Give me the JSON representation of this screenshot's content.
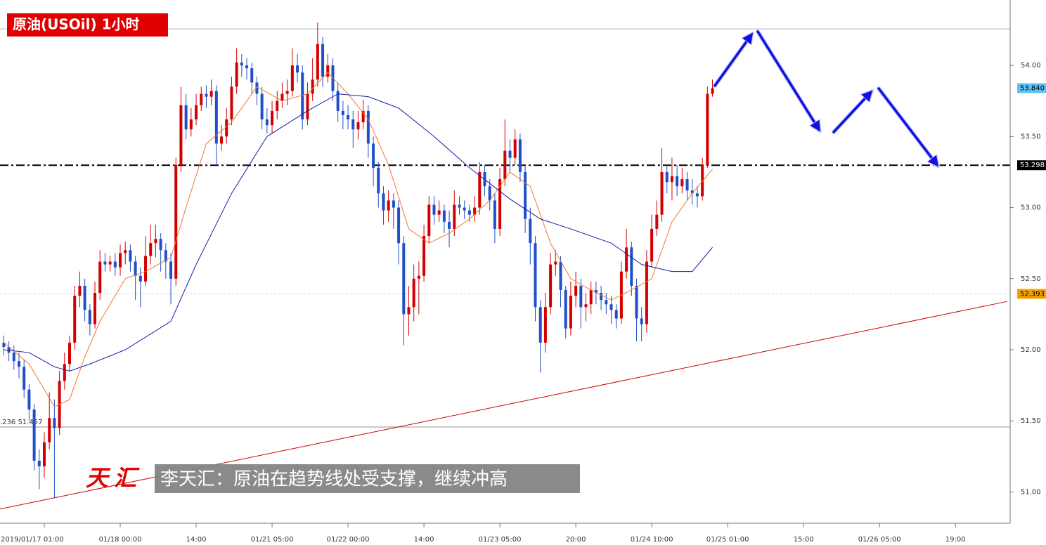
{
  "chart_data": {
    "type": "candlestick",
    "title": "原油(USOil) 1小时",
    "annotation": "李天汇：原油在趋势线处受支撑，继续冲高",
    "watermark": "天汇",
    "up_color": "#d40000",
    "down_color": "#1f50c8",
    "xlim": [
      -0.75,
      198.25
    ],
    "ylim": [
      50.78,
      54.46
    ],
    "yticks": [
      {
        "value": 51,
        "label": "51.00"
      },
      {
        "value": 51.5,
        "label": "51.50"
      },
      {
        "value": 52,
        "label": "52.00"
      },
      {
        "value": 52.5,
        "label": "52.50"
      },
      {
        "value": 53,
        "label": "53.00"
      },
      {
        "value": 53.5,
        "label": "53.50"
      },
      {
        "value": 54,
        "label": "54.00"
      }
    ],
    "xticks": [
      {
        "value": 8,
        "label": "2019/01/17 01:00"
      },
      {
        "value": 23,
        "label": "01/18 00:00"
      },
      {
        "value": 38,
        "label": "14:00"
      },
      {
        "value": 53,
        "label": "01/21 05:00"
      },
      {
        "value": 68,
        "label": "01/22 00:00"
      },
      {
        "value": 83,
        "label": "14:00"
      },
      {
        "value": 98,
        "label": "01/23 05:00"
      },
      {
        "value": 113,
        "label": "20:00"
      },
      {
        "value": 128,
        "label": "01/24 10:00"
      },
      {
        "value": 143,
        "label": "01/25 01:00"
      },
      {
        "value": 158,
        "label": "15:00"
      },
      {
        "value": 173,
        "label": "01/26 05:00"
      },
      {
        "value": 188,
        "label": "19:00"
      }
    ],
    "open": [
      52.05,
      52.02,
      51.98,
      51.92,
      51.88,
      51.72,
      51.58,
      51.22,
      51.18,
      51.35,
      51.52,
      51.45,
      51.78,
      51.9,
      52.05,
      52.38,
      52.45,
      52.28,
      52.18,
      52.4,
      52.62,
      52.6,
      52.62,
      52.58,
      52.68,
      52.7,
      52.62,
      52.52,
      52.48,
      52.66,
      52.75,
      52.78,
      52.7,
      52.62,
      52.5,
      53.3,
      53.72,
      53.55,
      53.62,
      53.72,
      53.8,
      53.78,
      53.82,
      53.45,
      53.5,
      53.62,
      53.85,
      54.02,
      54.0,
      53.98,
      53.88,
      53.8,
      53.62,
      53.58,
      53.68,
      53.75,
      53.8,
      53.82,
      54.0,
      53.95,
      53.62,
      53.8,
      53.9,
      54.15,
      53.92,
      54.0,
      53.82,
      53.68,
      53.65,
      53.62,
      53.55,
      53.6,
      53.68,
      53.45,
      53.28,
      53.1,
      52.98,
      53.05,
      53.0,
      52.75,
      52.25,
      52.3,
      52.5,
      52.52,
      52.8,
      53.02,
      52.95,
      52.98,
      52.9,
      52.85,
      53.02,
      53.0,
      52.98,
      52.95,
      53.0,
      53.25,
      53.15,
      53.05,
      52.85,
      53.2,
      53.4,
      53.35,
      53.48,
      53.25,
      52.92,
      52.75,
      52.3,
      52.05,
      52.3,
      52.6,
      52.62,
      52.42,
      52.15,
      52.38,
      52.45,
      52.3,
      52.32,
      52.42,
      52.4,
      52.35,
      52.32,
      52.28,
      52.22,
      52.55,
      52.72,
      52.45,
      52.22,
      52.18,
      52.62,
      52.85,
      52.95,
      53.25,
      53.18,
      53.22,
      53.15,
      53.2,
      53.12,
      53.1,
      53.08,
      53.3,
      53.8
    ],
    "high": [
      52.1,
      52.06,
      52.03,
      51.98,
      51.93,
      51.76,
      51.62,
      51.3,
      51.42,
      51.7,
      51.65,
      51.85,
      51.98,
      52.1,
      52.45,
      52.55,
      52.5,
      52.32,
      52.48,
      52.7,
      52.68,
      52.66,
      52.68,
      52.74,
      52.76,
      52.74,
      52.66,
      52.58,
      52.8,
      52.88,
      52.88,
      52.82,
      52.75,
      52.68,
      53.35,
      53.85,
      53.8,
      53.7,
      53.8,
      53.85,
      53.86,
      53.9,
      53.86,
      53.58,
      53.7,
      53.92,
      54.12,
      54.08,
      54.05,
      54.02,
      53.92,
      53.85,
      53.7,
      53.75,
      53.82,
      53.88,
      53.9,
      54.12,
      54.08,
      54.0,
      53.88,
      54.05,
      54.3,
      54.2,
      54.08,
      54.05,
      53.88,
      53.75,
      53.72,
      53.68,
      53.68,
      53.76,
      53.72,
      53.5,
      53.32,
      53.15,
      53.12,
      53.1,
      53.05,
      52.8,
      52.45,
      52.6,
      52.62,
      52.88,
      53.08,
      53.08,
      53.05,
      53.02,
      52.98,
      53.12,
      53.08,
      53.05,
      53.02,
      53.08,
      53.32,
      53.3,
      53.2,
      53.1,
      53.28,
      53.62,
      53.48,
      53.55,
      53.52,
      53.3,
      53.0,
      52.8,
      52.35,
      52.4,
      52.68,
      52.7,
      52.66,
      52.45,
      52.48,
      52.55,
      52.5,
      52.4,
      52.48,
      52.48,
      52.45,
      52.4,
      52.38,
      52.32,
      52.62,
      52.85,
      52.76,
      52.5,
      52.3,
      52.7,
      52.95,
      53.05,
      53.42,
      53.3,
      53.35,
      53.3,
      53.28,
      53.25,
      53.2,
      53.15,
      53.35,
      53.85,
      53.9
    ],
    "low": [
      51.96,
      51.92,
      51.86,
      51.8,
      51.66,
      51.5,
      51.15,
      51.02,
      51.1,
      51.3,
      50.96,
      51.4,
      51.72,
      51.85,
      52.0,
      52.3,
      52.2,
      52.1,
      52.15,
      52.35,
      52.55,
      52.55,
      52.52,
      52.52,
      52.6,
      52.55,
      52.35,
      52.3,
      52.45,
      52.6,
      52.65,
      52.55,
      52.5,
      52.32,
      52.45,
      53.25,
      53.48,
      53.5,
      53.58,
      53.68,
      53.7,
      53.72,
      53.3,
      53.4,
      53.45,
      53.58,
      53.8,
      53.92,
      53.9,
      53.8,
      53.72,
      53.55,
      53.52,
      53.52,
      53.62,
      53.7,
      53.72,
      53.78,
      53.88,
      53.55,
      53.58,
      53.75,
      53.85,
      53.85,
      53.88,
      53.75,
      53.6,
      53.55,
      53.55,
      53.42,
      53.48,
      53.55,
      53.35,
      53.15,
      53.0,
      52.88,
      52.9,
      52.85,
      52.6,
      52.03,
      52.1,
      52.2,
      52.25,
      52.48,
      52.75,
      52.88,
      52.9,
      52.82,
      52.72,
      52.8,
      52.95,
      52.92,
      52.9,
      52.9,
      52.95,
      53.08,
      52.98,
      52.75,
      52.8,
      53.15,
      53.25,
      53.3,
      53.18,
      52.82,
      52.6,
      52.2,
      51.84,
      51.98,
      52.25,
      52.52,
      52.3,
      52.08,
      52.1,
      52.3,
      52.15,
      52.2,
      52.25,
      52.32,
      52.28,
      52.25,
      52.18,
      52.15,
      52.18,
      52.5,
      52.38,
      52.06,
      52.06,
      52.12,
      52.58,
      52.8,
      52.9,
      53.1,
      53.05,
      53.08,
      53.1,
      53.05,
      53.02,
      53.0,
      53.05,
      53.28,
      53.78
    ],
    "close": [
      52.02,
      51.98,
      51.92,
      51.88,
      51.72,
      51.58,
      51.22,
      51.18,
      51.35,
      51.52,
      51.45,
      51.78,
      51.9,
      52.05,
      52.38,
      52.45,
      52.28,
      52.18,
      52.4,
      52.62,
      52.6,
      52.62,
      52.58,
      52.68,
      52.7,
      52.62,
      52.52,
      52.48,
      52.66,
      52.75,
      52.78,
      52.7,
      52.62,
      52.5,
      53.3,
      53.72,
      53.55,
      53.62,
      53.72,
      53.8,
      53.78,
      53.82,
      53.45,
      53.5,
      53.62,
      53.85,
      54.02,
      54.0,
      53.98,
      53.88,
      53.8,
      53.62,
      53.58,
      53.68,
      53.75,
      53.8,
      53.82,
      54.0,
      53.95,
      53.62,
      53.8,
      53.9,
      54.15,
      53.92,
      54.0,
      53.82,
      53.68,
      53.65,
      53.62,
      53.55,
      53.6,
      53.68,
      53.45,
      53.28,
      53.1,
      52.98,
      53.05,
      53.0,
      52.75,
      52.25,
      52.3,
      52.5,
      52.52,
      52.8,
      53.02,
      52.95,
      52.98,
      52.9,
      52.85,
      53.02,
      53.0,
      52.98,
      52.95,
      53.0,
      53.25,
      53.15,
      53.05,
      52.85,
      53.2,
      53.4,
      53.35,
      53.48,
      53.25,
      52.92,
      52.75,
      52.3,
      52.05,
      52.3,
      52.6,
      52.62,
      52.42,
      52.15,
      52.38,
      52.45,
      52.3,
      52.32,
      52.42,
      52.4,
      52.35,
      52.32,
      52.28,
      52.22,
      52.55,
      52.72,
      52.45,
      52.22,
      52.18,
      52.62,
      52.85,
      52.95,
      53.25,
      53.18,
      53.22,
      53.15,
      53.2,
      53.12,
      53.1,
      53.08,
      53.3,
      53.8,
      53.84
    ],
    "lines": [
      {
        "color": "#f07830",
        "x": [
          0,
          5,
          10,
          13,
          16,
          19,
          24,
          28,
          33,
          36,
          40,
          45,
          50,
          55,
          60,
          64,
          68,
          72,
          76,
          80,
          84,
          88,
          92,
          96,
          100,
          104,
          108,
          112,
          116,
          120,
          124,
          128,
          132,
          136,
          140
        ],
        "values": [
          52.05,
          51.9,
          51.6,
          51.65,
          51.95,
          52.2,
          52.5,
          52.55,
          52.65,
          53.0,
          53.45,
          53.6,
          53.85,
          53.75,
          53.8,
          53.95,
          53.8,
          53.62,
          53.3,
          52.85,
          52.75,
          52.82,
          52.92,
          53.05,
          53.25,
          53.15,
          52.75,
          52.5,
          52.42,
          52.35,
          52.42,
          52.5,
          52.9,
          53.1,
          53.27
        ]
      },
      {
        "color": "#1a1aa8",
        "x": [
          0,
          5,
          10,
          13,
          17,
          24,
          33,
          38,
          45,
          52,
          60,
          66,
          72,
          78,
          85,
          92,
          100,
          106,
          112,
          120,
          126,
          132,
          136,
          140
        ],
        "values": [
          52.0,
          51.98,
          51.88,
          51.85,
          51.9,
          52.0,
          52.2,
          52.6,
          53.1,
          53.5,
          53.68,
          53.8,
          53.78,
          53.7,
          53.5,
          53.28,
          53.06,
          52.92,
          52.85,
          52.75,
          52.6,
          52.55,
          52.55,
          52.72
        ]
      }
    ],
    "trendline": {
      "color": "#cc0000",
      "x": [
        -0.75,
        198.25
      ],
      "values": [
        50.88,
        52.34
      ]
    },
    "price_lines": [
      {
        "value": 54.257,
        "color": "#b0b0b0",
        "style": "solid"
      },
      {
        "value": 53.298,
        "label": "53.298",
        "color": "#000000",
        "style": "dashdot",
        "label_bg": "#000000",
        "label_color": "#ffffff"
      },
      {
        "value": 53.84,
        "label": "53.840",
        "color": "#5bc4f5",
        "style": "none",
        "label_bg": "#5bc4f5",
        "label_color": "#000000"
      },
      {
        "value": 52.393,
        "label": "52.393",
        "color": "#d8d8d8",
        "style": "dotted",
        "label_bg": "#f5a000",
        "label_color": "#000000"
      },
      {
        "value": 51.457,
        "note": ".236 51.457",
        "color": "#909090",
        "style": "solid"
      }
    ]
  }
}
